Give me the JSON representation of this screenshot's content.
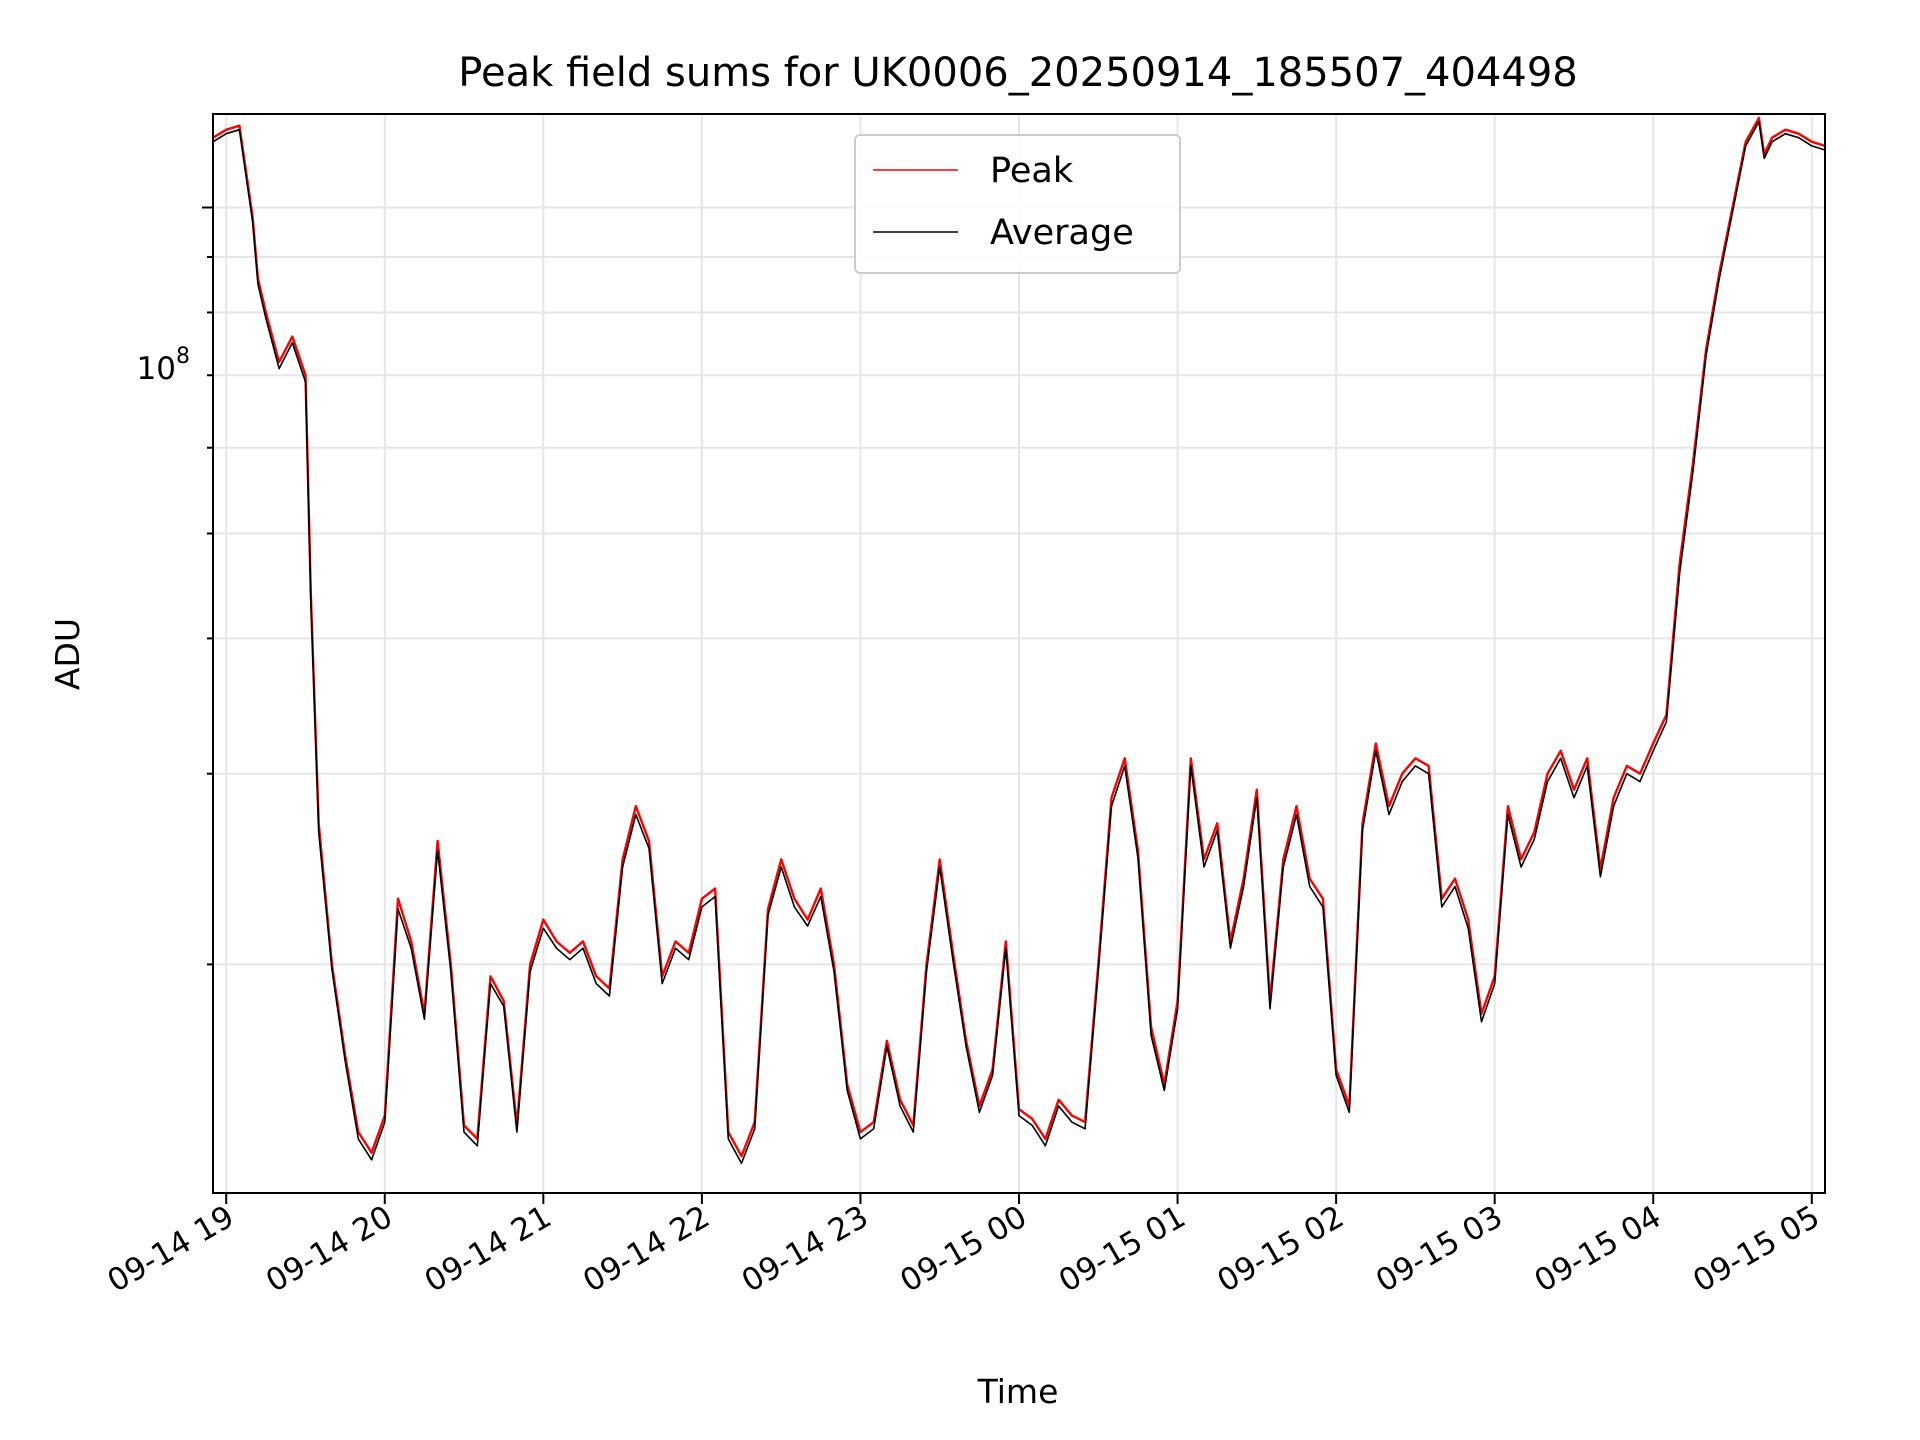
{
  "chart_data": {
    "type": "line",
    "title": "Peak field sums for UK0006_20250914_185507_404498",
    "xlabel": "Time",
    "ylabel": "ADU",
    "yscale": "log",
    "grid": true,
    "legend_position": "top-center",
    "xlim": [
      "09-14 18:55",
      "09-15 05:05"
    ],
    "ylim": [
      12300000,
      122000000
    ],
    "x_ticks": [
      "09-14 19",
      "09-14 20",
      "09-14 21",
      "09-14 22",
      "09-14 23",
      "09-15 00",
      "09-15 01",
      "09-15 02",
      "09-15 03",
      "09-15 04",
      "09-15 05"
    ],
    "y_tick_base": "10",
    "y_tick_exp": "8",
    "x": [
      "09-14 18:55",
      "09-14 19:00",
      "09-14 19:05",
      "09-14 19:10",
      "09-14 19:12",
      "09-14 19:15",
      "09-14 19:20",
      "09-14 19:25",
      "09-14 19:30",
      "09-14 19:32",
      "09-14 19:35",
      "09-14 19:40",
      "09-14 19:45",
      "09-14 19:50",
      "09-14 19:55",
      "09-14 20:00",
      "09-14 20:05",
      "09-14 20:10",
      "09-14 20:15",
      "09-14 20:20",
      "09-14 20:25",
      "09-14 20:30",
      "09-14 20:35",
      "09-14 20:40",
      "09-14 20:45",
      "09-14 20:50",
      "09-14 20:55",
      "09-14 21:00",
      "09-14 21:05",
      "09-14 21:10",
      "09-14 21:15",
      "09-14 21:20",
      "09-14 21:25",
      "09-14 21:30",
      "09-14 21:35",
      "09-14 21:40",
      "09-14 21:45",
      "09-14 21:50",
      "09-14 21:55",
      "09-14 22:00",
      "09-14 22:05",
      "09-14 22:10",
      "09-14 22:15",
      "09-14 22:20",
      "09-14 22:25",
      "09-14 22:30",
      "09-14 22:35",
      "09-14 22:40",
      "09-14 22:45",
      "09-14 22:50",
      "09-14 22:55",
      "09-14 23:00",
      "09-14 23:05",
      "09-14 23:10",
      "09-14 23:15",
      "09-14 23:20",
      "09-14 23:25",
      "09-14 23:30",
      "09-14 23:35",
      "09-14 23:40",
      "09-14 23:45",
      "09-14 23:50",
      "09-14 23:55",
      "09-15 00:00",
      "09-15 00:05",
      "09-15 00:10",
      "09-15 00:15",
      "09-15 00:20",
      "09-15 00:25",
      "09-15 00:30",
      "09-15 00:35",
      "09-15 00:40",
      "09-15 00:45",
      "09-15 00:50",
      "09-15 00:55",
      "09-15 01:00",
      "09-15 01:05",
      "09-15 01:10",
      "09-15 01:15",
      "09-15 01:20",
      "09-15 01:25",
      "09-15 01:30",
      "09-15 01:35",
      "09-15 01:40",
      "09-15 01:45",
      "09-15 01:50",
      "09-15 01:55",
      "09-15 02:00",
      "09-15 02:05",
      "09-15 02:10",
      "09-15 02:15",
      "09-15 02:20",
      "09-15 02:25",
      "09-15 02:30",
      "09-15 02:35",
      "09-15 02:40",
      "09-15 02:45",
      "09-15 02:50",
      "09-15 02:55",
      "09-15 03:00",
      "09-15 03:05",
      "09-15 03:10",
      "09-15 03:15",
      "09-15 03:20",
      "09-15 03:25",
      "09-15 03:30",
      "09-15 03:35",
      "09-15 03:40",
      "09-15 03:45",
      "09-15 03:50",
      "09-15 03:55",
      "09-15 04:00",
      "09-15 04:05",
      "09-15 04:10",
      "09-15 04:15",
      "09-15 04:20",
      "09-15 04:25",
      "09-15 04:30",
      "09-15 04:35",
      "09-15 04:40",
      "09-15 04:42",
      "09-15 04:45",
      "09-15 04:50",
      "09-15 04:55",
      "09-15 05:00",
      "09-15 05:05"
    ],
    "series": [
      {
        "name": "Peak",
        "color": "#ff0000",
        "values": [
          116000000,
          118000000,
          119000000,
          98000000,
          86000000,
          80000000,
          72000000,
          76000000,
          70000000,
          44000000,
          27000000,
          20000000,
          16500000,
          14000000,
          13400000,
          14500000,
          23000000,
          21000000,
          18000000,
          26000000,
          20000000,
          14200000,
          13800000,
          19500000,
          18500000,
          14200000,
          20000000,
          22000000,
          21000000,
          20500000,
          21000000,
          19500000,
          19000000,
          25000000,
          28000000,
          26000000,
          19500000,
          21000000,
          20500000,
          23000000,
          23500000,
          14000000,
          13300000,
          14300000,
          22500000,
          25000000,
          23000000,
          22000000,
          23500000,
          20000000,
          15500000,
          14000000,
          14300000,
          17000000,
          15000000,
          14200000,
          20000000,
          25000000,
          20500000,
          17000000,
          14800000,
          16000000,
          21000000,
          14700000,
          14400000,
          13800000,
          15000000,
          14500000,
          14300000,
          20000000,
          28500000,
          31000000,
          25500000,
          17500000,
          15500000,
          18500000,
          31000000,
          25000000,
          27000000,
          21000000,
          24000000,
          29000000,
          18500000,
          25000000,
          28000000,
          24000000,
          23000000,
          16000000,
          14800000,
          27000000,
          32000000,
          28000000,
          30000000,
          31000000,
          30500000,
          23000000,
          24000000,
          22000000,
          18000000,
          19500000,
          28000000,
          25000000,
          26500000,
          30000000,
          31500000,
          29000000,
          31000000,
          24500000,
          28500000,
          30500000,
          30000000,
          32000000,
          34000000,
          47000000,
          58000000,
          74000000,
          87000000,
          100000000,
          115000000,
          121000000,
          112000000,
          116000000,
          118000000,
          117000000,
          115000000,
          114000000
        ]
      },
      {
        "name": "Average",
        "color": "#000000",
        "values": [
          115000000,
          117000000,
          118000000,
          97000000,
          85000000,
          79000000,
          71000000,
          75000000,
          69000000,
          43500000,
          26500000,
          19800000,
          16300000,
          13800000,
          13200000,
          14300000,
          22500000,
          20700000,
          17800000,
          25500000,
          19700000,
          14000000,
          13600000,
          19200000,
          18300000,
          14000000,
          19700000,
          21600000,
          20700000,
          20200000,
          20700000,
          19200000,
          18700000,
          24600000,
          27500000,
          25600000,
          19200000,
          20700000,
          20200000,
          22600000,
          23100000,
          13800000,
          13100000,
          14100000,
          22200000,
          24600000,
          22600000,
          21700000,
          23100000,
          19700000,
          15300000,
          13800000,
          14100000,
          16800000,
          14800000,
          14000000,
          19700000,
          24600000,
          20200000,
          16800000,
          14600000,
          15800000,
          20700000,
          14500000,
          14200000,
          13600000,
          14800000,
          14300000,
          14100000,
          19700000,
          28000000,
          30500000,
          25100000,
          17200000,
          15300000,
          18200000,
          30500000,
          24600000,
          26600000,
          20700000,
          23600000,
          28500000,
          18200000,
          24600000,
          27500000,
          23600000,
          22600000,
          15800000,
          14600000,
          26600000,
          31500000,
          27500000,
          29500000,
          30500000,
          30000000,
          22600000,
          23600000,
          21600000,
          17700000,
          19200000,
          27500000,
          24600000,
          26100000,
          29500000,
          31000000,
          28500000,
          30500000,
          24100000,
          28000000,
          30000000,
          29500000,
          31500000,
          33500000,
          46000000,
          57000000,
          73000000,
          86000000,
          99000000,
          114000000,
          120000000,
          111000000,
          115000000,
          117000000,
          116000000,
          114000000,
          113000000
        ]
      }
    ]
  }
}
